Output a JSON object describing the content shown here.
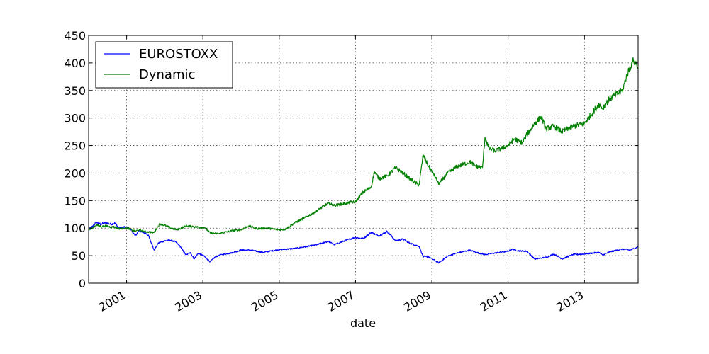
{
  "chart_data": {
    "type": "line",
    "title": "",
    "xlabel": "date",
    "ylabel": "",
    "xlim": [
      "2000-01-03",
      "2014-05-30"
    ],
    "ylim": [
      0,
      450
    ],
    "x_ticks": [
      "2001",
      "2003",
      "2005",
      "2007",
      "2009",
      "2011",
      "2013"
    ],
    "y_ticks": [
      0,
      50,
      100,
      150,
      200,
      250,
      300,
      350,
      400,
      450
    ],
    "grid": true,
    "legend_position": "upper-left",
    "series": [
      {
        "name": "EUROSTOXX",
        "color": "#0000ff",
        "points": [
          [
            "2000-01-03",
            97
          ],
          [
            "2000-02-15",
            104
          ],
          [
            "2000-03-15",
            111
          ],
          [
            "2000-05-01",
            107
          ],
          [
            "2000-06-15",
            110
          ],
          [
            "2000-08-01",
            107
          ],
          [
            "2000-09-15",
            109
          ],
          [
            "2000-10-15",
            100
          ],
          [
            "2000-12-01",
            102
          ],
          [
            "2001-01-15",
            101
          ],
          [
            "2001-02-15",
            97
          ],
          [
            "2001-03-22",
            86
          ],
          [
            "2001-05-01",
            95
          ],
          [
            "2001-06-15",
            92
          ],
          [
            "2001-08-01",
            86
          ],
          [
            "2001-09-21",
            60
          ],
          [
            "2001-11-01",
            73
          ],
          [
            "2002-01-01",
            77
          ],
          [
            "2002-03-01",
            78
          ],
          [
            "2002-04-15",
            75
          ],
          [
            "2002-06-01",
            66
          ],
          [
            "2002-07-24",
            51
          ],
          [
            "2002-09-01",
            56
          ],
          [
            "2002-10-09",
            44
          ],
          [
            "2002-11-15",
            54
          ],
          [
            "2003-01-01",
            51
          ],
          [
            "2003-03-12",
            39
          ],
          [
            "2003-05-01",
            48
          ],
          [
            "2003-07-01",
            52
          ],
          [
            "2003-10-01",
            55
          ],
          [
            "2004-01-01",
            60
          ],
          [
            "2004-04-01",
            60
          ],
          [
            "2004-08-01",
            56
          ],
          [
            "2004-12-31",
            61
          ],
          [
            "2005-06-01",
            63
          ],
          [
            "2005-12-31",
            70
          ],
          [
            "2006-04-15",
            76
          ],
          [
            "2006-06-14",
            70
          ],
          [
            "2006-10-01",
            78
          ],
          [
            "2006-12-31",
            83
          ],
          [
            "2007-03-14",
            81
          ],
          [
            "2007-06-01",
            92
          ],
          [
            "2007-08-15",
            86
          ],
          [
            "2007-11-01",
            94
          ],
          [
            "2008-01-21",
            77
          ],
          [
            "2008-04-01",
            80
          ],
          [
            "2008-06-01",
            73
          ],
          [
            "2008-09-01",
            67
          ],
          [
            "2008-10-10",
            48
          ],
          [
            "2008-12-01",
            48
          ],
          [
            "2009-03-09",
            37
          ],
          [
            "2009-06-01",
            49
          ],
          [
            "2009-09-01",
            55
          ],
          [
            "2009-12-31",
            60
          ],
          [
            "2010-03-01",
            56
          ],
          [
            "2010-05-25",
            52
          ],
          [
            "2010-09-01",
            55
          ],
          [
            "2010-12-31",
            58
          ],
          [
            "2011-02-15",
            62
          ],
          [
            "2011-04-01",
            59
          ],
          [
            "2011-07-01",
            58
          ],
          [
            "2011-09-12",
            44
          ],
          [
            "2011-12-31",
            47
          ],
          [
            "2012-03-15",
            53
          ],
          [
            "2012-06-01",
            44
          ],
          [
            "2012-09-15",
            52
          ],
          [
            "2012-12-31",
            53
          ],
          [
            "2013-05-20",
            56
          ],
          [
            "2013-06-24",
            51
          ],
          [
            "2013-09-01",
            57
          ],
          [
            "2013-12-31",
            62
          ],
          [
            "2014-03-15",
            60
          ],
          [
            "2014-05-30",
            66
          ]
        ]
      },
      {
        "name": "Dynamic",
        "color": "#008000",
        "points": [
          [
            "2000-01-03",
            97
          ],
          [
            "2000-02-15",
            101
          ],
          [
            "2000-03-15",
            106
          ],
          [
            "2000-05-01",
            103
          ],
          [
            "2000-06-15",
            104
          ],
          [
            "2000-08-01",
            102
          ],
          [
            "2000-09-15",
            102
          ],
          [
            "2000-10-15",
            99
          ],
          [
            "2000-12-01",
            100
          ],
          [
            "2001-01-15",
            100
          ],
          [
            "2001-03-22",
            94
          ],
          [
            "2001-05-01",
            97
          ],
          [
            "2001-06-15",
            94
          ],
          [
            "2001-08-01",
            93
          ],
          [
            "2001-09-21",
            92
          ],
          [
            "2001-11-15",
            108
          ],
          [
            "2002-01-15",
            104
          ],
          [
            "2002-03-01",
            100
          ],
          [
            "2002-05-01",
            97
          ],
          [
            "2002-07-24",
            104
          ],
          [
            "2002-10-01",
            103
          ],
          [
            "2002-12-15",
            101
          ],
          [
            "2003-01-15",
            102
          ],
          [
            "2003-03-12",
            91
          ],
          [
            "2003-06-01",
            90
          ],
          [
            "2003-10-01",
            95
          ],
          [
            "2003-12-31",
            97
          ],
          [
            "2004-03-15",
            104
          ],
          [
            "2004-06-01",
            99
          ],
          [
            "2004-09-01",
            100
          ],
          [
            "2004-12-31",
            97
          ],
          [
            "2005-03-01",
            98
          ],
          [
            "2005-06-01",
            110
          ],
          [
            "2005-09-15",
            120
          ],
          [
            "2005-12-31",
            132
          ],
          [
            "2006-04-15",
            145
          ],
          [
            "2006-06-14",
            141
          ],
          [
            "2006-10-01",
            145
          ],
          [
            "2006-12-31",
            148
          ],
          [
            "2007-03-14",
            165
          ],
          [
            "2007-06-01",
            175
          ],
          [
            "2007-07-01",
            203
          ],
          [
            "2007-08-15",
            190
          ],
          [
            "2007-11-01",
            195
          ],
          [
            "2008-01-21",
            210
          ],
          [
            "2008-04-01",
            200
          ],
          [
            "2008-06-01",
            190
          ],
          [
            "2008-09-01",
            178
          ],
          [
            "2008-10-10",
            233
          ],
          [
            "2008-12-01",
            212
          ],
          [
            "2009-01-15",
            200
          ],
          [
            "2009-03-09",
            180
          ],
          [
            "2009-06-01",
            200
          ],
          [
            "2009-09-01",
            212
          ],
          [
            "2009-12-31",
            220
          ],
          [
            "2010-03-01",
            212
          ],
          [
            "2010-05-01",
            210
          ],
          [
            "2010-05-25",
            265
          ],
          [
            "2010-07-01",
            245
          ],
          [
            "2010-09-01",
            240
          ],
          [
            "2010-12-31",
            250
          ],
          [
            "2011-03-01",
            262
          ],
          [
            "2011-05-15",
            255
          ],
          [
            "2011-07-01",
            270
          ],
          [
            "2011-09-12",
            290
          ],
          [
            "2011-11-15",
            302
          ],
          [
            "2011-12-31",
            280
          ],
          [
            "2012-03-15",
            285
          ],
          [
            "2012-06-01",
            275
          ],
          [
            "2012-09-15",
            285
          ],
          [
            "2012-12-31",
            290
          ],
          [
            "2013-03-01",
            305
          ],
          [
            "2013-05-20",
            325
          ],
          [
            "2013-06-24",
            318
          ],
          [
            "2013-09-01",
            335
          ],
          [
            "2013-12-31",
            350
          ],
          [
            "2014-02-15",
            380
          ],
          [
            "2014-04-15",
            405
          ],
          [
            "2014-05-30",
            393
          ]
        ]
      }
    ]
  }
}
